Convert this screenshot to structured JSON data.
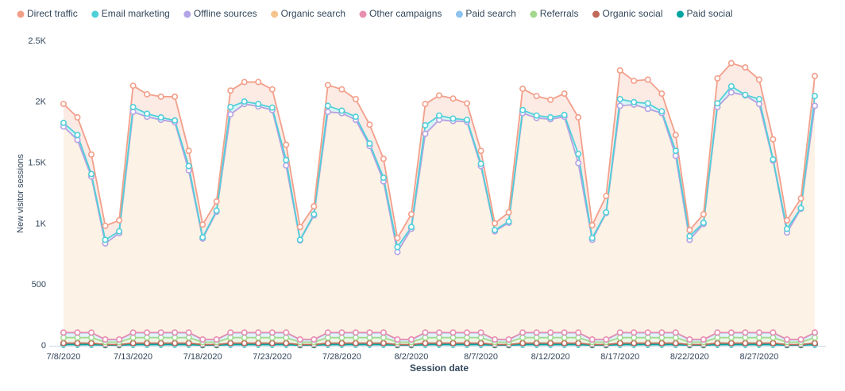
{
  "chart_data": {
    "type": "area",
    "stacked": true,
    "grid": false,
    "x_label": "Session date",
    "y_label": "New visitor sessions",
    "x": [
      "7/8/2020",
      null,
      null,
      null,
      null,
      "7/13/2020",
      null,
      null,
      null,
      null,
      "7/18/2020",
      null,
      null,
      null,
      null,
      "7/23/2020",
      null,
      null,
      null,
      null,
      "7/28/2020",
      null,
      null,
      null,
      null,
      "8/2/2020",
      null,
      null,
      null,
      null,
      "8/7/2020",
      null,
      null,
      null,
      null,
      "8/12/2020",
      null,
      null,
      null,
      null,
      "8/17/2020",
      null,
      null,
      null,
      null,
      "8/22/2020",
      null,
      null,
      null,
      null,
      "8/27/2020",
      null,
      null,
      null,
      null
    ],
    "ylim": [
      0,
      2500
    ],
    "yticks": [
      0,
      500,
      {
        "value": 1000,
        "label": "1K"
      },
      {
        "value": 1500,
        "label": "1.5K"
      },
      {
        "value": 2000,
        "label": "2K"
      },
      {
        "value": 2500,
        "label": "2.5K"
      }
    ],
    "series": [
      {
        "name": "Direct traffic",
        "color": "#f29f8a",
        "values": [
          155,
          145,
          160,
          115,
          90,
          175,
          160,
          170,
          195,
          125,
          105,
          75,
          135,
          160,
          180,
          150,
          125,
          105,
          65,
          170,
          175,
          145,
          155,
          155,
          75,
          105,
          175,
          165,
          165,
          135,
          105,
          55,
          75,
          175,
          160,
          145,
          175,
          300,
          105,
          135,
          235,
          175,
          195,
          145,
          130,
          50,
          70,
          205,
          190,
          225,
          160,
          165,
          70,
          80,
          165
        ]
      },
      {
        "name": "Email marketing",
        "color": "#4fd0d8",
        "values": [
          30,
          40,
          20,
          30,
          15,
          40,
          25,
          20,
          15,
          35,
          10,
          10,
          60,
          20,
          20,
          20,
          45,
          5,
          10,
          50,
          20,
          25,
          20,
          30,
          40,
          15,
          70,
          35,
          20,
          15,
          20,
          10,
          10,
          25,
          20,
          15,
          15,
          75,
          15,
          5,
          55,
          20,
          45,
          15,
          40,
          30,
          10,
          30,
          50,
          5,
          40,
          10,
          30,
          5,
          80
        ]
      },
      {
        "name": "Offline sources",
        "color": "#b3a4e8",
        "values": [
          0,
          0,
          0,
          0,
          0,
          0,
          0,
          0,
          0,
          0,
          0,
          0,
          0,
          0,
          0,
          0,
          0,
          0,
          0,
          0,
          0,
          0,
          0,
          0,
          0,
          0,
          0,
          0,
          0,
          0,
          0,
          0,
          0,
          0,
          0,
          0,
          0,
          0,
          0,
          0,
          0,
          0,
          0,
          0,
          0,
          0,
          0,
          0,
          0,
          0,
          0,
          0,
          0,
          0,
          0
        ]
      },
      {
        "name": "Organic search",
        "color": "#f5c48e",
        "values": [
          1691,
          1581,
          1281,
          788,
          873,
          1811,
          1771,
          1746,
          1726,
          1331,
          828,
          1048,
          1791,
          1876,
          1856,
          1826,
          1371,
          813,
          1018,
          1811,
          1801,
          1746,
          1531,
          1241,
          718,
          908,
          1631,
          1746,
          1736,
          1731,
          1366,
          888,
          958,
          1801,
          1761,
          1751,
          1771,
          1391,
          818,
          1038,
          1861,
          1871,
          1836,
          1801,
          1451,
          818,
          948,
          1851,
          1971,
          1946,
          1876,
          1411,
          878,
          1073,
          1861
        ]
      },
      {
        "name": "Other campaigns",
        "color": "#e88fb0",
        "values": [
          2,
          2,
          2,
          2,
          2,
          2,
          2,
          2,
          2,
          2,
          2,
          2,
          2,
          2,
          2,
          2,
          2,
          2,
          2,
          2,
          2,
          2,
          2,
          2,
          2,
          2,
          2,
          2,
          2,
          2,
          2,
          2,
          2,
          2,
          2,
          2,
          2,
          2,
          2,
          2,
          2,
          2,
          2,
          2,
          2,
          2,
          2,
          2,
          2,
          2,
          2,
          2,
          2,
          2,
          2
        ]
      },
      {
        "name": "Paid search",
        "color": "#8ec3f0",
        "values": [
          40,
          40,
          40,
          20,
          20,
          40,
          40,
          40,
          40,
          40,
          20,
          20,
          40,
          40,
          40,
          40,
          40,
          20,
          20,
          40,
          40,
          40,
          40,
          40,
          20,
          20,
          40,
          40,
          40,
          40,
          40,
          20,
          20,
          40,
          40,
          40,
          40,
          40,
          20,
          20,
          40,
          40,
          40,
          40,
          40,
          20,
          20,
          40,
          40,
          40,
          40,
          40,
          20,
          20,
          40
        ]
      },
      {
        "name": "Referrals",
        "color": "#a3d98f",
        "values": [
          45,
          45,
          45,
          20,
          20,
          45,
          45,
          45,
          45,
          45,
          20,
          20,
          45,
          45,
          45,
          45,
          45,
          20,
          20,
          45,
          45,
          45,
          45,
          45,
          20,
          20,
          45,
          45,
          45,
          45,
          45,
          20,
          20,
          45,
          45,
          45,
          45,
          45,
          20,
          20,
          45,
          45,
          45,
          45,
          45,
          20,
          20,
          45,
          45,
          45,
          45,
          45,
          20,
          20,
          45
        ]
      },
      {
        "name": "Organic social",
        "color": "#c0695a",
        "values": [
          12,
          12,
          12,
          5,
          5,
          12,
          12,
          12,
          12,
          12,
          5,
          5,
          12,
          12,
          12,
          12,
          12,
          5,
          5,
          12,
          12,
          12,
          12,
          12,
          5,
          5,
          12,
          12,
          12,
          12,
          12,
          5,
          5,
          12,
          12,
          12,
          12,
          12,
          5,
          5,
          12,
          12,
          12,
          12,
          12,
          5,
          5,
          12,
          12,
          12,
          12,
          12,
          5,
          5,
          12
        ]
      },
      {
        "name": "Paid social",
        "color": "#00a4a0",
        "values": [
          10,
          10,
          10,
          5,
          5,
          10,
          10,
          10,
          10,
          10,
          5,
          5,
          10,
          10,
          10,
          10,
          10,
          5,
          5,
          10,
          10,
          10,
          10,
          10,
          5,
          5,
          10,
          10,
          10,
          10,
          10,
          5,
          5,
          10,
          10,
          10,
          10,
          10,
          5,
          5,
          10,
          10,
          10,
          10,
          10,
          5,
          5,
          10,
          10,
          10,
          10,
          10,
          5,
          5,
          10
        ]
      }
    ]
  }
}
